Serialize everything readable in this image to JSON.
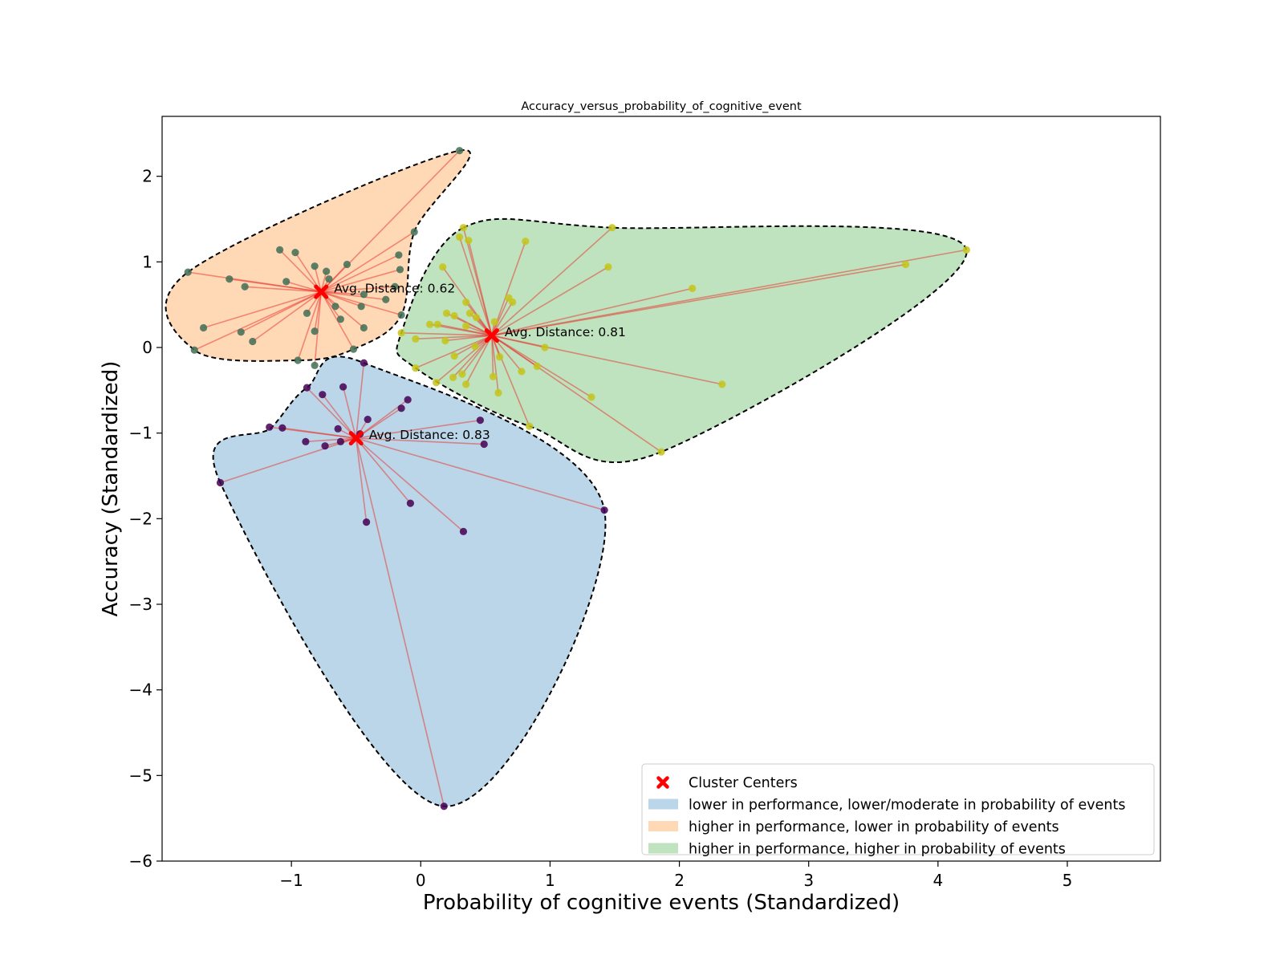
{
  "chart_data": {
    "type": "scatter",
    "title": "Accuracy_versus_probability_of_cognitive_event",
    "xlabel": "Probability of cognitive events (Standardized)",
    "ylabel": "Accuracy (Standardized)",
    "xlim": [
      -2.0,
      5.72
    ],
    "ylim": [
      -6.0,
      2.7
    ],
    "xticks": [
      -1,
      0,
      1,
      2,
      3,
      4,
      5
    ],
    "xtick_labels": [
      "−1",
      "0",
      "1",
      "2",
      "3",
      "4",
      "5"
    ],
    "yticks": [
      -6,
      -5,
      -4,
      -3,
      -2,
      -1,
      0,
      1,
      2
    ],
    "ytick_labels": [
      "−6",
      "−5",
      "−4",
      "−3",
      "−2",
      "−1",
      "0",
      "1",
      "2"
    ],
    "grid": false,
    "legend_position": "lower-right",
    "legend": [
      {
        "label": "Cluster Centers",
        "kind": "center",
        "color": "#ff0000"
      },
      {
        "label": "lower in performance, lower/moderate in probability of events",
        "kind": "region",
        "color": "#1f77b4"
      },
      {
        "label": "higher in performance, lower in probability of events",
        "kind": "region",
        "color": "#ff7f0e"
      },
      {
        "label": "higher in performance, higher in probability of events",
        "kind": "region",
        "color": "#2ca02c"
      }
    ],
    "series": [
      {
        "name": "lower in performance, lower/moderate in probability of events",
        "region_color": "#1f77b4",
        "point_color": "#440154",
        "center": [
          -0.5,
          -1.06
        ],
        "annotation": "Avg. Distance: 0.83",
        "hull": [
          [
            -1.55,
            -1.58
          ],
          [
            -1.15,
            -0.93
          ],
          [
            -0.88,
            -0.47
          ],
          [
            -0.44,
            -0.18
          ],
          [
            1.42,
            -1.9
          ],
          [
            0.18,
            -5.36
          ]
        ],
        "points": [
          [
            -1.55,
            -1.58
          ],
          [
            -1.17,
            -0.93
          ],
          [
            -1.07,
            -0.94
          ],
          [
            -0.88,
            -0.47
          ],
          [
            -0.76,
            -0.55
          ],
          [
            -0.6,
            -0.46
          ],
          [
            -0.44,
            -0.18
          ],
          [
            -0.41,
            -0.84
          ],
          [
            -0.15,
            -0.71
          ],
          [
            -0.1,
            -0.61
          ],
          [
            0.46,
            -0.85
          ],
          [
            0.49,
            -1.13
          ],
          [
            -0.64,
            -0.95
          ],
          [
            -0.47,
            -1.01
          ],
          [
            -0.62,
            -1.1
          ],
          [
            -0.74,
            -1.15
          ],
          [
            -0.89,
            -1.1
          ],
          [
            -0.42,
            -2.04
          ],
          [
            -0.08,
            -1.82
          ],
          [
            0.33,
            -2.15
          ],
          [
            1.42,
            -1.9
          ],
          [
            0.18,
            -5.36
          ]
        ]
      },
      {
        "name": "higher in performance, lower in probability of events",
        "region_color": "#ff7f0e",
        "point_color": "#3f6e55",
        "center": [
          -0.77,
          0.65
        ],
        "annotation": "Avg. Distance: 0.62",
        "hull": [
          [
            0.3,
            2.3
          ],
          [
            -0.05,
            1.35
          ],
          [
            -0.15,
            0.38
          ],
          [
            -0.52,
            -0.02
          ],
          [
            -0.95,
            -0.15
          ],
          [
            -1.75,
            -0.03
          ],
          [
            -1.8,
            0.88
          ]
        ],
        "points": [
          [
            0.3,
            2.3
          ],
          [
            -1.8,
            0.88
          ],
          [
            -1.75,
            -0.03
          ],
          [
            -1.68,
            0.23
          ],
          [
            -1.48,
            0.8
          ],
          [
            -1.36,
            0.71
          ],
          [
            -1.39,
            0.18
          ],
          [
            -1.3,
            0.07
          ],
          [
            -1.09,
            1.14
          ],
          [
            -1.04,
            0.77
          ],
          [
            -0.97,
            1.11
          ],
          [
            -0.88,
            0.4
          ],
          [
            -0.82,
            0.95
          ],
          [
            -0.73,
            0.89
          ],
          [
            -0.71,
            0.8
          ],
          [
            -0.66,
            0.48
          ],
          [
            -0.57,
            0.97
          ],
          [
            -0.62,
            0.33
          ],
          [
            -0.46,
            0.48
          ],
          [
            -0.44,
            0.62
          ],
          [
            -0.44,
            0.23
          ],
          [
            -0.27,
            0.56
          ],
          [
            -0.2,
            0.71
          ],
          [
            -0.17,
            1.08
          ],
          [
            -0.16,
            0.91
          ],
          [
            -0.15,
            0.38
          ],
          [
            -0.05,
            1.35
          ],
          [
            -0.82,
            0.19
          ],
          [
            -0.95,
            -0.15
          ],
          [
            -0.82,
            -0.21
          ],
          [
            -0.52,
            -0.02
          ]
        ]
      },
      {
        "name": "higher in performance, higher in probability of events",
        "region_color": "#2ca02c",
        "point_color": "#c4c418",
        "center": [
          0.55,
          0.14
        ],
        "annotation": "Avg. Distance: 0.81",
        "hull": [
          [
            0.33,
            1.4
          ],
          [
            1.48,
            1.4
          ],
          [
            4.22,
            1.14
          ],
          [
            1.86,
            -1.22
          ],
          [
            0.84,
            -0.92
          ],
          [
            -0.04,
            -0.24
          ],
          [
            -0.15,
            0.17
          ]
        ],
        "points": [
          [
            0.33,
            1.4
          ],
          [
            0.3,
            1.29
          ],
          [
            0.37,
            1.25
          ],
          [
            0.81,
            1.24
          ],
          [
            1.48,
            1.4
          ],
          [
            0.17,
            0.94
          ],
          [
            1.45,
            0.94
          ],
          [
            2.1,
            0.69
          ],
          [
            4.22,
            1.14
          ],
          [
            3.75,
            0.97
          ],
          [
            0.68,
            0.58
          ],
          [
            0.71,
            0.53
          ],
          [
            0.35,
            0.53
          ],
          [
            0.38,
            0.4
          ],
          [
            0.2,
            0.4
          ],
          [
            0.26,
            0.37
          ],
          [
            0.43,
            0.35
          ],
          [
            0.57,
            0.3
          ],
          [
            0.13,
            0.27
          ],
          [
            0.07,
            0.27
          ],
          [
            0.35,
            0.25
          ],
          [
            0.19,
            0.08
          ],
          [
            -0.04,
            0.1
          ],
          [
            -0.15,
            0.17
          ],
          [
            0.42,
            0.01
          ],
          [
            0.96,
            0.0
          ],
          [
            0.26,
            -0.1
          ],
          [
            0.61,
            -0.11
          ],
          [
            0.9,
            -0.22
          ],
          [
            -0.04,
            -0.24
          ],
          [
            0.78,
            -0.28
          ],
          [
            0.32,
            -0.31
          ],
          [
            0.25,
            -0.35
          ],
          [
            0.56,
            -0.34
          ],
          [
            0.12,
            -0.41
          ],
          [
            0.35,
            -0.43
          ],
          [
            0.6,
            -0.53
          ],
          [
            2.33,
            -0.43
          ],
          [
            1.32,
            -0.58
          ],
          [
            0.84,
            -0.92
          ],
          [
            1.86,
            -1.22
          ]
        ]
      }
    ]
  }
}
